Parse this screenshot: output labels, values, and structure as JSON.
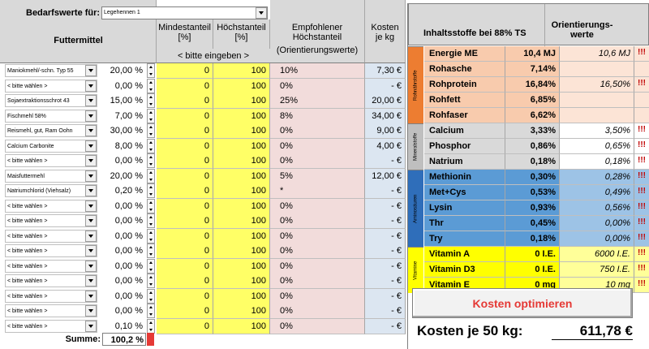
{
  "header": {
    "bedarf_label": "Bedarfswerte für:",
    "bedarf_value": "Legehennen 1",
    "futtermittel": "Futtermittel",
    "mindest": "Mindestanteil",
    "mindest_unit": "[%]",
    "hoechst": "Höchstanteil",
    "hoechst_unit": "[%]",
    "bitte_eingeben": "< bitte eingeben >",
    "empf_line1": "Empfohlener",
    "empf_line2": "Höchstanteil",
    "empf_line3": "(Orientierungswerte)",
    "kosten_line1": "Kosten",
    "kosten_line2": "je kg",
    "inhalt": "Inhaltsstoffe bei 88% TS",
    "orient_line1": "Orientierungs-",
    "orient_line2": "werte"
  },
  "rows": [
    {
      "name": "Maniokmehl/-schn. Typ 55",
      "pct": "20,00 %",
      "min": "0",
      "max": "100",
      "empf": "10%",
      "cost": "7,30 €"
    },
    {
      "name": "< bitte wählen >",
      "pct": "0,00 %",
      "min": "0",
      "max": "100",
      "empf": "0%",
      "cost": "-   €"
    },
    {
      "name": "Sojaextraktionsschrot 43",
      "pct": "15,00 %",
      "min": "0",
      "max": "100",
      "empf": "25%",
      "cost": "20,00 €"
    },
    {
      "name": "Fischmehl 58%",
      "pct": "7,00 %",
      "min": "0",
      "max": "100",
      "empf": "8%",
      "cost": "34,00 €"
    },
    {
      "name": "Reismehl, gut, Ram Oohn",
      "pct": "30,00 %",
      "min": "0",
      "max": "100",
      "empf": "0%",
      "cost": "9,00 €"
    },
    {
      "name": "Calcium Carbonite",
      "pct": "8,00 %",
      "min": "0",
      "max": "100",
      "empf": "0%",
      "cost": "4,00 €"
    },
    {
      "name": "< bitte wählen >",
      "pct": "0,00 %",
      "min": "0",
      "max": "100",
      "empf": "0%",
      "cost": "-   €"
    },
    {
      "name": "Maisfuttermehl",
      "pct": "20,00 %",
      "min": "0",
      "max": "100",
      "empf": "5%",
      "cost": "12,00 €"
    },
    {
      "name": "Natriumchlorid (Viehsalz)",
      "pct": "0,20 %",
      "min": "0",
      "max": "100",
      "empf": "*",
      "cost": "-   €"
    },
    {
      "name": "< bitte wählen >",
      "pct": "0,00 %",
      "min": "0",
      "max": "100",
      "empf": "0%",
      "cost": "-   €"
    },
    {
      "name": "< bitte wählen >",
      "pct": "0,00 %",
      "min": "0",
      "max": "100",
      "empf": "0%",
      "cost": "-   €"
    },
    {
      "name": "< bitte wählen >",
      "pct": "0,00 %",
      "min": "0",
      "max": "100",
      "empf": "0%",
      "cost": "-   €"
    },
    {
      "name": "< bitte wählen >",
      "pct": "0,00 %",
      "min": "0",
      "max": "100",
      "empf": "0%",
      "cost": "-   €"
    },
    {
      "name": "< bitte wählen >",
      "pct": "0,00 %",
      "min": "0",
      "max": "100",
      "empf": "0%",
      "cost": "-   €"
    },
    {
      "name": "< bitte wählen >",
      "pct": "0,00 %",
      "min": "0",
      "max": "100",
      "empf": "0%",
      "cost": "-   €"
    },
    {
      "name": "< bitte wählen >",
      "pct": "0,00 %",
      "min": "0",
      "max": "100",
      "empf": "0%",
      "cost": "-   €"
    },
    {
      "name": "< bitte wählen >",
      "pct": "0,00 %",
      "min": "0",
      "max": "100",
      "empf": "0%",
      "cost": "-   €"
    },
    {
      "name": "< bitte wählen >",
      "pct": "0,10 %",
      "min": "0",
      "max": "100",
      "empf": "0%",
      "cost": "-   €"
    }
  ],
  "summe_label": "Summe:",
  "summe_value": "100,2 %",
  "groups": [
    {
      "label": "Rohnährstoffe",
      "color": "#ed7d31",
      "items": [
        {
          "name": "Energie ME",
          "value": "10,4 MJ",
          "orient": "10,6 MJ",
          "excl": "!!!"
        },
        {
          "name": "Rohasche",
          "value": "7,14%",
          "orient": "",
          "excl": ""
        },
        {
          "name": "Rohprotein",
          "value": "16,84%",
          "orient": "16,50%",
          "excl": "!!!"
        },
        {
          "name": "Rohfett",
          "value": "6,85%",
          "orient": "",
          "excl": ""
        },
        {
          "name": "Rohfaser",
          "value": "6,62%",
          "orient": "",
          "excl": ""
        }
      ]
    },
    {
      "label": "Mineralstoffe",
      "color": "#bfbfbf",
      "items": [
        {
          "name": "Calcium",
          "value": "3,33%",
          "orient": "3,50%",
          "excl": "!!!"
        },
        {
          "name": "Phosphor",
          "value": "0,86%",
          "orient": "0,65%",
          "excl": "!!!"
        },
        {
          "name": "Natrium",
          "value": "0,18%",
          "orient": "0,18%",
          "excl": "!!!"
        }
      ]
    },
    {
      "label": "Aminosäuren",
      "color": "#2f6eba",
      "items": [
        {
          "name": "Methionin",
          "value": "0,30%",
          "orient": "0,28%",
          "excl": "!!!"
        },
        {
          "name": "Met+Cys",
          "value": "0,53%",
          "orient": "0,49%",
          "excl": "!!!"
        },
        {
          "name": "Lysin",
          "value": "0,93%",
          "orient": "0,56%",
          "excl": "!!!"
        },
        {
          "name": "Thr",
          "value": "0,45%",
          "orient": "0,00%",
          "excl": "!!!"
        },
        {
          "name": "Try",
          "value": "0,18%",
          "orient": "0,00%",
          "excl": "!!!"
        }
      ]
    },
    {
      "label": "Vitamine",
      "color": "#ffff00",
      "items": [
        {
          "name": "Vitamin A",
          "value": "0 I.E.",
          "orient": "6000 I.E.",
          "excl": "!!!"
        },
        {
          "name": "Vitamin D3",
          "value": "0 I.E.",
          "orient": "750 I.E.",
          "excl": "!!!"
        },
        {
          "name": "Vitamin E",
          "value": "0 mg",
          "orient": "10 mg",
          "excl": "!!!"
        }
      ]
    }
  ],
  "button_label": "Kosten optimieren",
  "kosten_label": "Kosten je 50 kg:",
  "kosten_value": "611,78 €"
}
